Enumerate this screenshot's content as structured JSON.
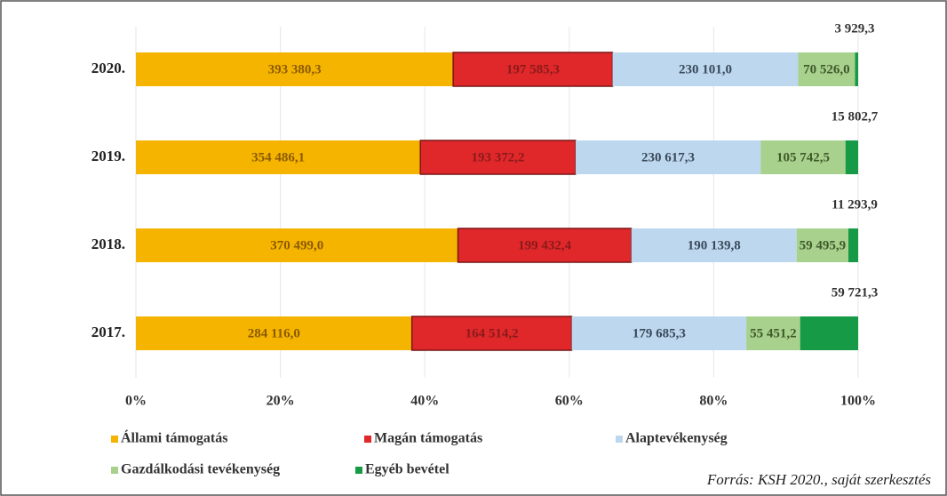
{
  "chart_data": {
    "type": "stacked_bar_100",
    "orientation": "horizontal",
    "categories": [
      "2020.",
      "2019.",
      "2018.",
      "2017."
    ],
    "series": [
      {
        "name": "Állami támogatás",
        "color": "#f5b400",
        "values": [
          393380.3,
          354486.1,
          370499.0,
          284116.0
        ],
        "value_labels": [
          "393 380,3",
          "354 486,1",
          "370 499,0",
          "284 116,0"
        ]
      },
      {
        "name": "Magán támogatás",
        "color": "#e0282b",
        "values": [
          197585.3,
          193372.2,
          199432.4,
          164514.2
        ],
        "value_labels": [
          "197 585,3",
          "193 372,2",
          "199 432,4",
          "164 514,2"
        ]
      },
      {
        "name": "Alaptevékenység",
        "color": "#bdd7ee",
        "values": [
          230101.0,
          230617.3,
          190139.8,
          179685.3
        ],
        "value_labels": [
          "230 101,0",
          "230 617,3",
          "190 139,8",
          "179 685,3"
        ]
      },
      {
        "name": "Gazdálkodási tevékenység",
        "color": "#a9d18e",
        "values": [
          70526.0,
          105742.5,
          59495.9,
          55451.2
        ],
        "value_labels": [
          "70 526,0",
          "105 742,5",
          "59 495,9",
          "55 451,2"
        ]
      },
      {
        "name": "Egyéb bevétel",
        "color": "#179a46",
        "values": [
          3929.3,
          15802.7,
          11293.9,
          59721.3
        ],
        "value_labels": [
          "3 929,3",
          "15 802,7",
          "11 293,9",
          "59 721,3"
        ]
      }
    ],
    "xlim": [
      0,
      100
    ],
    "xticks": [
      {
        "value": 0,
        "label": "0%"
      },
      {
        "value": 20,
        "label": "20%"
      },
      {
        "value": 40,
        "label": "40%"
      },
      {
        "value": 60,
        "label": "60%"
      },
      {
        "value": 80,
        "label": "80%"
      },
      {
        "value": 100,
        "label": "100%"
      }
    ],
    "grid": true,
    "legend": "bottom",
    "source": "Forrás: KSH 2020., saját szerkesztés"
  }
}
